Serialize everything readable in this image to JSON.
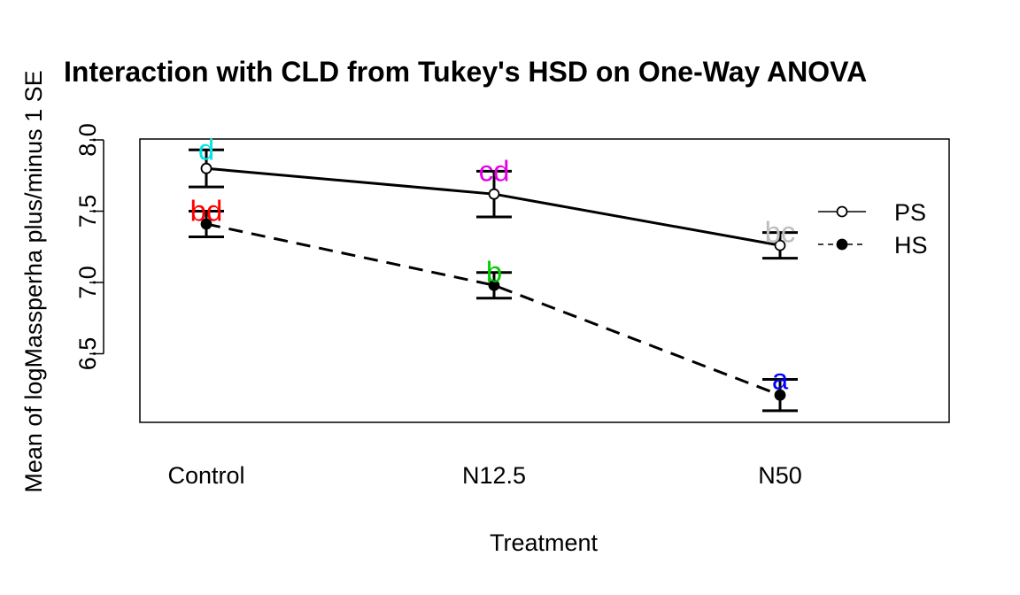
{
  "chart_data": {
    "type": "line",
    "title": "Interaction with CLD from Tukey's HSD on One-Way ANOVA",
    "xlabel": "Treatment",
    "ylabel": "Mean of  logMassperha plus/minus 1 SE",
    "categories": [
      "Control",
      "N12.5",
      "N50"
    ],
    "yticks": [
      "6.5",
      "7.0",
      "7.5",
      "8.0"
    ],
    "ylim": [
      6.0,
      8.0
    ],
    "legend_position": "right",
    "series": [
      {
        "name": "PS",
        "marker": "open-circle",
        "line": "solid",
        "values": [
          7.8,
          7.62,
          7.26
        ],
        "se": [
          0.13,
          0.16,
          0.09
        ],
        "labels": [
          "d",
          "cd",
          "bc"
        ],
        "label_colors": [
          "#00E5E5",
          "#E500E5",
          "#BEBEBE"
        ]
      },
      {
        "name": "HS",
        "marker": "filled-circle",
        "line": "dashed",
        "values": [
          7.41,
          6.98,
          6.21
        ],
        "se": [
          0.09,
          0.09,
          0.11
        ],
        "labels": [
          "bd",
          "b",
          "a"
        ],
        "label_colors": [
          "#FF0000",
          "#00CD00",
          "#0000FF"
        ]
      }
    ]
  }
}
